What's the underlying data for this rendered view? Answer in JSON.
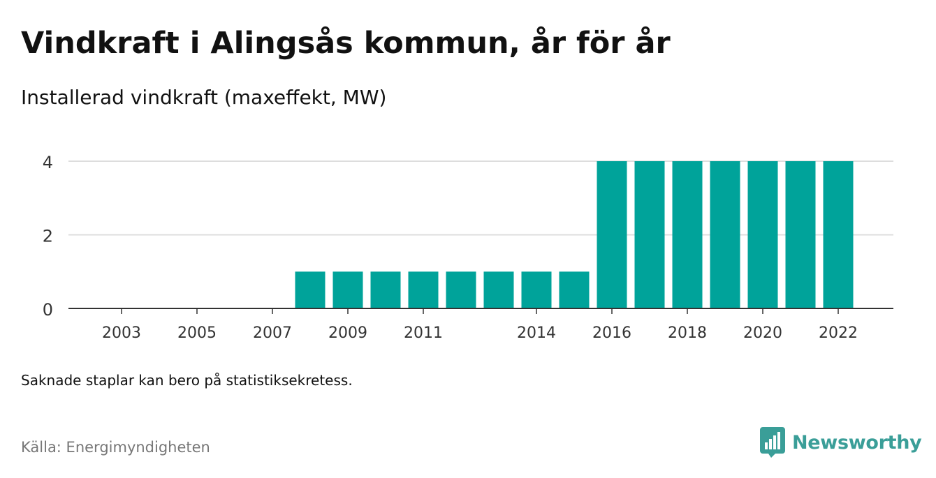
{
  "title": "Vindkraft i Alingsås kommun, år för år",
  "subtitle": "Installerad vindkraft (maxeffekt, MW)",
  "footnote": "Saknade staplar kan bero på statistiksekretess.",
  "source": "Källa: Energimyndigheten",
  "brand": {
    "name": "Newsworthy",
    "color": "#3a9e98",
    "icon": "newsworthy-logo-icon"
  },
  "chart_data": {
    "type": "bar",
    "categories": [
      "2002",
      "2003",
      "2004",
      "2005",
      "2006",
      "2007",
      "2008",
      "2009",
      "2010",
      "2011",
      "2012",
      "2013",
      "2014",
      "2015",
      "2016",
      "2017",
      "2018",
      "2019",
      "2020",
      "2021",
      "2022"
    ],
    "values": [
      0,
      0,
      0,
      0,
      0,
      0,
      1,
      1,
      1,
      1,
      1,
      1,
      1,
      1,
      4,
      4,
      4,
      4,
      4,
      4,
      4
    ],
    "x_tick_labels": [
      "2003",
      "2005",
      "2007",
      "2009",
      "2011",
      "2014",
      "2016",
      "2018",
      "2020",
      "2022"
    ],
    "y_ticks": [
      0,
      2,
      4
    ],
    "ylim": [
      0,
      4.2
    ],
    "bar_color": "#00a39a",
    "grid": true,
    "xlabel": "",
    "ylabel": ""
  }
}
